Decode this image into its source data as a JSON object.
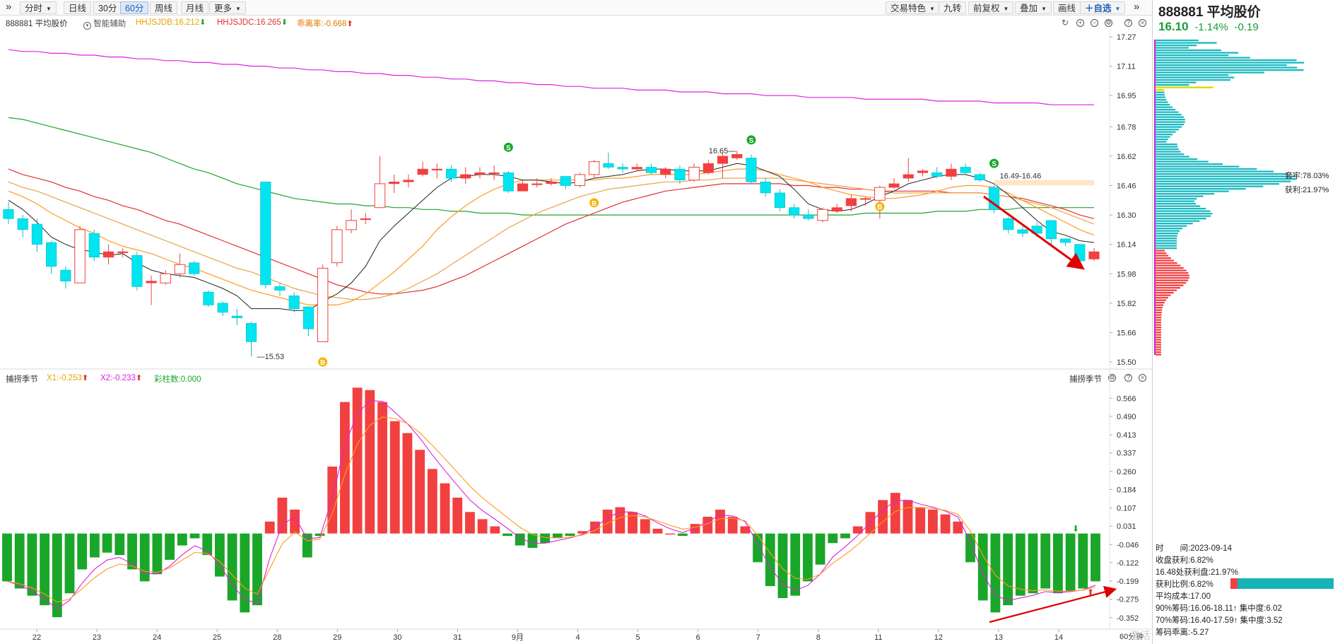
{
  "toolbar": {
    "left_buttons": [
      "分时",
      "日线",
      "30分",
      "60分",
      "周线",
      "月线",
      "更多"
    ],
    "right_buttons": [
      "交易特色",
      "九转",
      "前复权",
      "叠加",
      "画线",
      "自选"
    ]
  },
  "chart": {
    "stock_label": "888881 平均股价",
    "assist": "智能辅助",
    "hhjsjdb": "HHJSJDB:16.212",
    "hhjsjdc": "HHJSJDC:16.265",
    "deviation": "乖离率:-0.668",
    "price_axis": [
      "17.27",
      "17.11",
      "16.95",
      "16.78",
      "16.62",
      "16.46",
      "16.30",
      "16.14",
      "15.98",
      "15.82",
      "15.66",
      "15.50"
    ],
    "low_label": "15.53",
    "high_label": "16.65",
    "range_label": "16.49-16.46",
    "b_marker": "B",
    "s_marker": "S"
  },
  "indicator": {
    "name": "捕捞季节",
    "x1": "X1:-0.253",
    "x2": "X2:-0.233",
    "bars_count": "彩柱数:0.000",
    "name_right": "捕捞季节",
    "axis": [
      "0.566",
      "0.490",
      "0.413",
      "0.337",
      "0.260",
      "0.184",
      "0.107",
      "0.031",
      "-0.046",
      "-0.122",
      "-0.199",
      "-0.275",
      "-0.352"
    ]
  },
  "dates": [
    "22",
    "23",
    "24",
    "25",
    "28",
    "29",
    "30",
    "31",
    "9月",
    "4",
    "5",
    "6",
    "7",
    "8",
    "11",
    "12",
    "13",
    "14"
  ],
  "period_label": "60分钟",
  "watermark": "激活 Windows",
  "right_panel": {
    "title": "888881 平均股价",
    "price": "16.10",
    "pct": "-1.14%",
    "change": "-0.19",
    "taolao": "套牢:78.03%",
    "huoli": "获利:21.97%",
    "time": "时　　间:2023-09-14",
    "shouyi": "收盘获利:6.82%",
    "chu_huoli": "16.48处获利盘:21.97%",
    "huoli_bili": "获利比例:6.82%",
    "avg_cost": "平均成本:17.00",
    "chip90": "90%筹码:16.06-18.11↑ 集中度:6.02",
    "chip70": "70%筹码:16.40-17.59↑ 集中度:3.52",
    "chip_deviation": "筹码乖离:-5.27"
  },
  "colors": {
    "up": "#f24040",
    "down": "#00e5f0",
    "green": "#1aa629",
    "ma5": "#222222",
    "ma10": "#ff9a1f",
    "ma20": "#e8a24a",
    "ma30": "#e23030",
    "ma60": "#23a32a",
    "ma120": "#e020e0"
  },
  "chart_data": [
    {
      "type": "candlestick",
      "title": "888881 平均股价",
      "ylim": [
        15.5,
        17.27
      ],
      "candles": [
        {
          "o": 16.33,
          "c": 16.28,
          "h": 16.37,
          "l": 16.25
        },
        {
          "o": 16.28,
          "c": 16.22,
          "h": 16.3,
          "l": 16.18
        },
        {
          "o": 16.25,
          "c": 16.14,
          "h": 16.28,
          "l": 16.1
        },
        {
          "o": 16.15,
          "c": 16.02,
          "h": 16.16,
          "l": 15.98
        },
        {
          "o": 16.0,
          "c": 15.94,
          "h": 16.02,
          "l": 15.9
        },
        {
          "o": 15.93,
          "c": 16.22,
          "h": 16.24,
          "l": 15.93
        },
        {
          "o": 16.2,
          "c": 16.07,
          "h": 16.22,
          "l": 16.05
        },
        {
          "o": 16.07,
          "c": 16.1,
          "h": 16.14,
          "l": 16.03
        },
        {
          "o": 16.1,
          "c": 16.1,
          "h": 16.12,
          "l": 16.07
        },
        {
          "o": 16.08,
          "c": 15.91,
          "h": 16.1,
          "l": 15.89
        },
        {
          "o": 15.93,
          "c": 15.94,
          "h": 15.97,
          "l": 15.81
        },
        {
          "o": 15.93,
          "c": 15.98,
          "h": 16.0,
          "l": 15.92
        },
        {
          "o": 15.98,
          "c": 16.03,
          "h": 16.09,
          "l": 15.96
        },
        {
          "o": 16.04,
          "c": 15.98,
          "h": 16.05,
          "l": 15.97
        },
        {
          "o": 15.88,
          "c": 15.81,
          "h": 15.89,
          "l": 15.8
        },
        {
          "o": 15.82,
          "c": 15.77,
          "h": 15.83,
          "l": 15.75
        },
        {
          "o": 15.75,
          "c": 15.74,
          "h": 15.79,
          "l": 15.7
        },
        {
          "o": 15.71,
          "c": 15.61,
          "h": 15.72,
          "l": 15.53
        },
        {
          "o": 16.48,
          "c": 15.92,
          "h": 16.48,
          "l": 15.9
        },
        {
          "o": 15.91,
          "c": 15.89,
          "h": 15.93,
          "l": 15.86
        },
        {
          "o": 15.86,
          "c": 15.79,
          "h": 15.88,
          "l": 15.77
        },
        {
          "o": 15.8,
          "c": 15.68,
          "h": 15.8,
          "l": 15.64
        },
        {
          "o": 15.61,
          "c": 16.01,
          "h": 16.03,
          "l": 15.61
        },
        {
          "o": 16.04,
          "c": 16.22,
          "h": 16.24,
          "l": 16.02
        },
        {
          "o": 16.22,
          "c": 16.27,
          "h": 16.33,
          "l": 16.2
        },
        {
          "o": 16.28,
          "c": 16.28,
          "h": 16.31,
          "l": 16.25
        },
        {
          "o": 16.34,
          "c": 16.47,
          "h": 16.62,
          "l": 16.34
        },
        {
          "o": 16.47,
          "c": 16.48,
          "h": 16.52,
          "l": 16.42
        },
        {
          "o": 16.48,
          "c": 16.49,
          "h": 16.52,
          "l": 16.45
        },
        {
          "o": 16.52,
          "c": 16.55,
          "h": 16.59,
          "l": 16.51
        },
        {
          "o": 16.55,
          "c": 16.55,
          "h": 16.58,
          "l": 16.5
        },
        {
          "o": 16.55,
          "c": 16.5,
          "h": 16.57,
          "l": 16.48
        },
        {
          "o": 16.5,
          "c": 16.52,
          "h": 16.56,
          "l": 16.47
        },
        {
          "o": 16.52,
          "c": 16.53,
          "h": 16.56,
          "l": 16.5
        },
        {
          "o": 16.53,
          "c": 16.53,
          "h": 16.57,
          "l": 16.49
        },
        {
          "o": 16.53,
          "c": 16.43,
          "h": 16.54,
          "l": 16.42
        },
        {
          "o": 16.43,
          "c": 16.47,
          "h": 16.49,
          "l": 16.43
        },
        {
          "o": 16.47,
          "c": 16.47,
          "h": 16.5,
          "l": 16.45
        },
        {
          "o": 16.47,
          "c": 16.48,
          "h": 16.5,
          "l": 16.46
        },
        {
          "o": 16.51,
          "c": 16.46,
          "h": 16.51,
          "l": 16.44
        },
        {
          "o": 16.46,
          "c": 16.52,
          "h": 16.53,
          "l": 16.45
        },
        {
          "o": 16.52,
          "c": 16.59,
          "h": 16.6,
          "l": 16.5
        },
        {
          "o": 16.58,
          "c": 16.56,
          "h": 16.64,
          "l": 16.55
        },
        {
          "o": 16.56,
          "c": 16.55,
          "h": 16.58,
          "l": 16.53
        },
        {
          "o": 16.55,
          "c": 16.56,
          "h": 16.58,
          "l": 16.54
        },
        {
          "o": 16.56,
          "c": 16.53,
          "h": 16.58,
          "l": 16.52
        },
        {
          "o": 16.52,
          "c": 16.55,
          "h": 16.56,
          "l": 16.5
        },
        {
          "o": 16.55,
          "c": 16.49,
          "h": 16.57,
          "l": 16.47
        },
        {
          "o": 16.49,
          "c": 16.56,
          "h": 16.58,
          "l": 16.48
        },
        {
          "o": 16.53,
          "c": 16.58,
          "h": 16.6,
          "l": 16.52
        },
        {
          "o": 16.58,
          "c": 16.62,
          "h": 16.64,
          "l": 16.5
        },
        {
          "o": 16.61,
          "c": 16.63,
          "h": 16.65,
          "l": 16.6
        },
        {
          "o": 16.61,
          "c": 16.48,
          "h": 16.63,
          "l": 16.47
        },
        {
          "o": 16.48,
          "c": 16.42,
          "h": 16.5,
          "l": 16.4
        },
        {
          "o": 16.42,
          "c": 16.34,
          "h": 16.44,
          "l": 16.32
        },
        {
          "o": 16.34,
          "c": 16.3,
          "h": 16.36,
          "l": 16.28
        },
        {
          "o": 16.3,
          "c": 16.28,
          "h": 16.33,
          "l": 16.27
        },
        {
          "o": 16.27,
          "c": 16.33,
          "h": 16.34,
          "l": 16.26
        },
        {
          "o": 16.32,
          "c": 16.34,
          "h": 16.36,
          "l": 16.31
        },
        {
          "o": 16.35,
          "c": 16.39,
          "h": 16.41,
          "l": 16.32
        },
        {
          "o": 16.39,
          "c": 16.39,
          "h": 16.4,
          "l": 16.35
        },
        {
          "o": 16.38,
          "c": 16.45,
          "h": 16.46,
          "l": 16.28
        },
        {
          "o": 16.45,
          "c": 16.47,
          "h": 16.5,
          "l": 16.44
        },
        {
          "o": 16.5,
          "c": 16.52,
          "h": 16.61,
          "l": 16.48
        },
        {
          "o": 16.53,
          "c": 16.54,
          "h": 16.55,
          "l": 16.51
        },
        {
          "o": 16.53,
          "c": 16.51,
          "h": 16.56,
          "l": 16.5
        },
        {
          "o": 16.51,
          "c": 16.55,
          "h": 16.58,
          "l": 16.49
        },
        {
          "o": 16.56,
          "c": 16.53,
          "h": 16.58,
          "l": 16.52
        },
        {
          "o": 16.52,
          "c": 16.49,
          "h": 16.53,
          "l": 16.48
        },
        {
          "o": 16.45,
          "c": 16.33,
          "h": 16.47,
          "l": 16.31
        },
        {
          "o": 16.28,
          "c": 16.22,
          "h": 16.29,
          "l": 16.2
        },
        {
          "o": 16.22,
          "c": 16.2,
          "h": 16.24,
          "l": 16.18
        },
        {
          "o": 16.24,
          "c": 16.2,
          "h": 16.26,
          "l": 16.18
        },
        {
          "o": 16.27,
          "c": 16.17,
          "h": 16.27,
          "l": 16.14
        },
        {
          "o": 16.17,
          "c": 16.15,
          "h": 16.17,
          "l": 16.13
        },
        {
          "o": 16.14,
          "c": 16.05,
          "h": 16.14,
          "l": 16.04
        },
        {
          "o": 16.06,
          "c": 16.1,
          "h": 16.12,
          "l": 16.05
        }
      ],
      "ma5": [
        16.38,
        16.33,
        16.26,
        16.18,
        16.14,
        16.11,
        16.1,
        16.08,
        16.09,
        16.04,
        16.0,
        15.98,
        15.97,
        15.96,
        15.93,
        15.9,
        15.86,
        15.79,
        15.79,
        15.79,
        15.78,
        15.78,
        15.83,
        15.87,
        15.93,
        16.02,
        16.16,
        16.24,
        16.31,
        16.38,
        16.45,
        16.5,
        16.51,
        16.52,
        16.52,
        16.51,
        16.49,
        16.49,
        16.48,
        16.47,
        16.48,
        16.5,
        16.51,
        16.52,
        16.54,
        16.55,
        16.55,
        16.54,
        16.54,
        16.54,
        16.56,
        16.58,
        16.57,
        16.54,
        16.51,
        16.44,
        16.36,
        16.33,
        16.32,
        16.33,
        16.36,
        16.4,
        16.43,
        16.47,
        16.49,
        16.51,
        16.52,
        16.52,
        16.5,
        16.47,
        16.41,
        16.34,
        16.27,
        16.21,
        16.19,
        16.16,
        16.15
      ],
      "ma10": [
        16.43,
        16.4,
        16.36,
        16.31,
        16.27,
        16.23,
        16.2,
        16.16,
        16.13,
        16.11,
        16.09,
        16.06,
        16.03,
        16.01,
        15.98,
        15.95,
        15.92,
        15.89,
        15.87,
        15.85,
        15.83,
        15.81,
        15.81,
        15.81,
        15.83,
        15.87,
        15.93,
        15.99,
        16.06,
        16.13,
        16.22,
        16.29,
        16.35,
        16.4,
        16.44,
        16.47,
        16.49,
        16.49,
        16.49,
        16.49,
        16.49,
        16.49,
        16.5,
        16.5,
        16.51,
        16.52,
        16.52,
        16.52,
        16.52,
        16.53,
        16.54,
        16.55,
        16.55,
        16.54,
        16.52,
        16.5,
        16.48,
        16.45,
        16.43,
        16.41,
        16.4,
        16.39,
        16.39,
        16.4,
        16.41,
        16.43,
        16.45,
        16.46,
        16.46,
        16.45,
        16.42,
        16.38,
        16.34,
        16.3,
        16.26,
        16.22,
        16.19
      ],
      "ma20": [
        16.48,
        16.45,
        16.43,
        16.4,
        16.37,
        16.34,
        16.31,
        16.28,
        16.25,
        16.22,
        16.19,
        16.16,
        16.13,
        16.1,
        16.07,
        16.04,
        16.01,
        15.99,
        15.96,
        15.93,
        15.9,
        15.88,
        15.86,
        15.85,
        15.84,
        15.84,
        15.85,
        15.87,
        15.9,
        15.94,
        15.98,
        16.03,
        16.08,
        16.13,
        16.18,
        16.23,
        16.27,
        16.31,
        16.34,
        16.37,
        16.4,
        16.42,
        16.44,
        16.45,
        16.46,
        16.47,
        16.48,
        16.48,
        16.49,
        16.49,
        16.5,
        16.5,
        16.5,
        16.5,
        16.5,
        16.49,
        16.48,
        16.47,
        16.46,
        16.45,
        16.44,
        16.43,
        16.42,
        16.42,
        16.42,
        16.42,
        16.42,
        16.42,
        16.42,
        16.41,
        16.4,
        16.38,
        16.36,
        16.34,
        16.31,
        16.28,
        16.25
      ],
      "ma30": [
        16.55,
        16.52,
        16.5,
        16.48,
        16.45,
        16.43,
        16.4,
        16.38,
        16.35,
        16.33,
        16.3,
        16.27,
        16.25,
        16.22,
        16.19,
        16.16,
        16.13,
        16.1,
        16.07,
        16.04,
        16.01,
        15.98,
        15.95,
        15.92,
        15.9,
        15.88,
        15.87,
        15.87,
        15.88,
        15.89,
        15.91,
        15.94,
        15.97,
        16.01,
        16.05,
        16.09,
        16.13,
        16.17,
        16.21,
        16.25,
        16.28,
        16.31,
        16.34,
        16.37,
        16.39,
        16.41,
        16.43,
        16.44,
        16.45,
        16.46,
        16.47,
        16.47,
        16.47,
        16.47,
        16.47,
        16.46,
        16.46,
        16.45,
        16.45,
        16.44,
        16.44,
        16.43,
        16.43,
        16.43,
        16.43,
        16.43,
        16.42,
        16.42,
        16.42,
        16.41,
        16.4,
        16.39,
        16.37,
        16.35,
        16.33,
        16.3,
        16.28
      ],
      "ma60": [
        16.83,
        16.82,
        16.8,
        16.78,
        16.76,
        16.74,
        16.72,
        16.7,
        16.68,
        16.66,
        16.64,
        16.61,
        16.58,
        16.55,
        16.53,
        16.5,
        16.47,
        16.45,
        16.43,
        16.41,
        16.39,
        16.38,
        16.37,
        16.36,
        16.36,
        16.35,
        16.35,
        16.34,
        16.34,
        16.33,
        16.33,
        16.32,
        16.32,
        16.31,
        16.31,
        16.31,
        16.3,
        16.3,
        16.3,
        16.3,
        16.3,
        16.3,
        16.3,
        16.3,
        16.3,
        16.3,
        16.3,
        16.3,
        16.3,
        16.3,
        16.3,
        16.3,
        16.3,
        16.3,
        16.3,
        16.3,
        16.3,
        16.3,
        16.3,
        16.3,
        16.31,
        16.31,
        16.31,
        16.31,
        16.31,
        16.32,
        16.32,
        16.32,
        16.33,
        16.33,
        16.33,
        16.34,
        16.34,
        16.34,
        16.34,
        16.34,
        16.34
      ],
      "ma120": [
        17.2,
        17.19,
        17.19,
        17.18,
        17.18,
        17.17,
        17.17,
        17.16,
        17.16,
        17.15,
        17.15,
        17.14,
        17.14,
        17.13,
        17.13,
        17.12,
        17.12,
        17.11,
        17.11,
        17.1,
        17.1,
        17.09,
        17.09,
        17.08,
        17.08,
        17.07,
        17.07,
        17.06,
        17.06,
        17.05,
        17.05,
        17.04,
        17.04,
        17.03,
        17.03,
        17.02,
        17.02,
        17.01,
        17.01,
        17.0,
        17.0,
        16.99,
        16.99,
        16.99,
        16.98,
        16.98,
        16.98,
        16.97,
        16.97,
        16.97,
        16.96,
        16.96,
        16.96,
        16.95,
        16.95,
        16.95,
        16.94,
        16.94,
        16.94,
        16.94,
        16.93,
        16.93,
        16.93,
        16.93,
        16.93,
        16.92,
        16.92,
        16.92,
        16.92,
        16.91,
        16.91,
        16.91,
        16.91,
        16.9,
        16.9,
        16.9,
        16.9
      ]
    },
    {
      "type": "bar",
      "title": "捕捞季节",
      "ylim": [
        -0.4,
        0.62
      ],
      "values": [
        -0.2,
        -0.23,
        -0.26,
        -0.3,
        -0.35,
        -0.25,
        -0.15,
        -0.1,
        -0.08,
        -0.09,
        -0.15,
        -0.2,
        -0.17,
        -0.11,
        -0.05,
        -0.02,
        -0.09,
        -0.18,
        -0.28,
        -0.33,
        -0.3,
        0.05,
        0.15,
        0.1,
        -0.1,
        -0.01,
        0.28,
        0.55,
        0.61,
        0.6,
        0.55,
        0.47,
        0.42,
        0.35,
        0.27,
        0.21,
        0.15,
        0.09,
        0.06,
        0.03,
        -0.01,
        -0.05,
        -0.06,
        -0.04,
        -0.02,
        -0.01,
        0.01,
        0.05,
        0.1,
        0.11,
        0.09,
        0.06,
        0.02,
        0.0,
        -0.01,
        0.04,
        0.07,
        0.1,
        0.07,
        0.03,
        -0.12,
        -0.22,
        -0.27,
        -0.26,
        -0.2,
        -0.13,
        -0.04,
        -0.02,
        0.03,
        0.09,
        0.14,
        0.17,
        0.14,
        0.11,
        0.1,
        0.08,
        0.05,
        -0.12,
        -0.28,
        -0.33,
        -0.3,
        -0.26,
        -0.25,
        -0.23,
        -0.25,
        -0.24,
        -0.23,
        -0.2
      ],
      "x1": -0.253,
      "x2": -0.233
    }
  ]
}
